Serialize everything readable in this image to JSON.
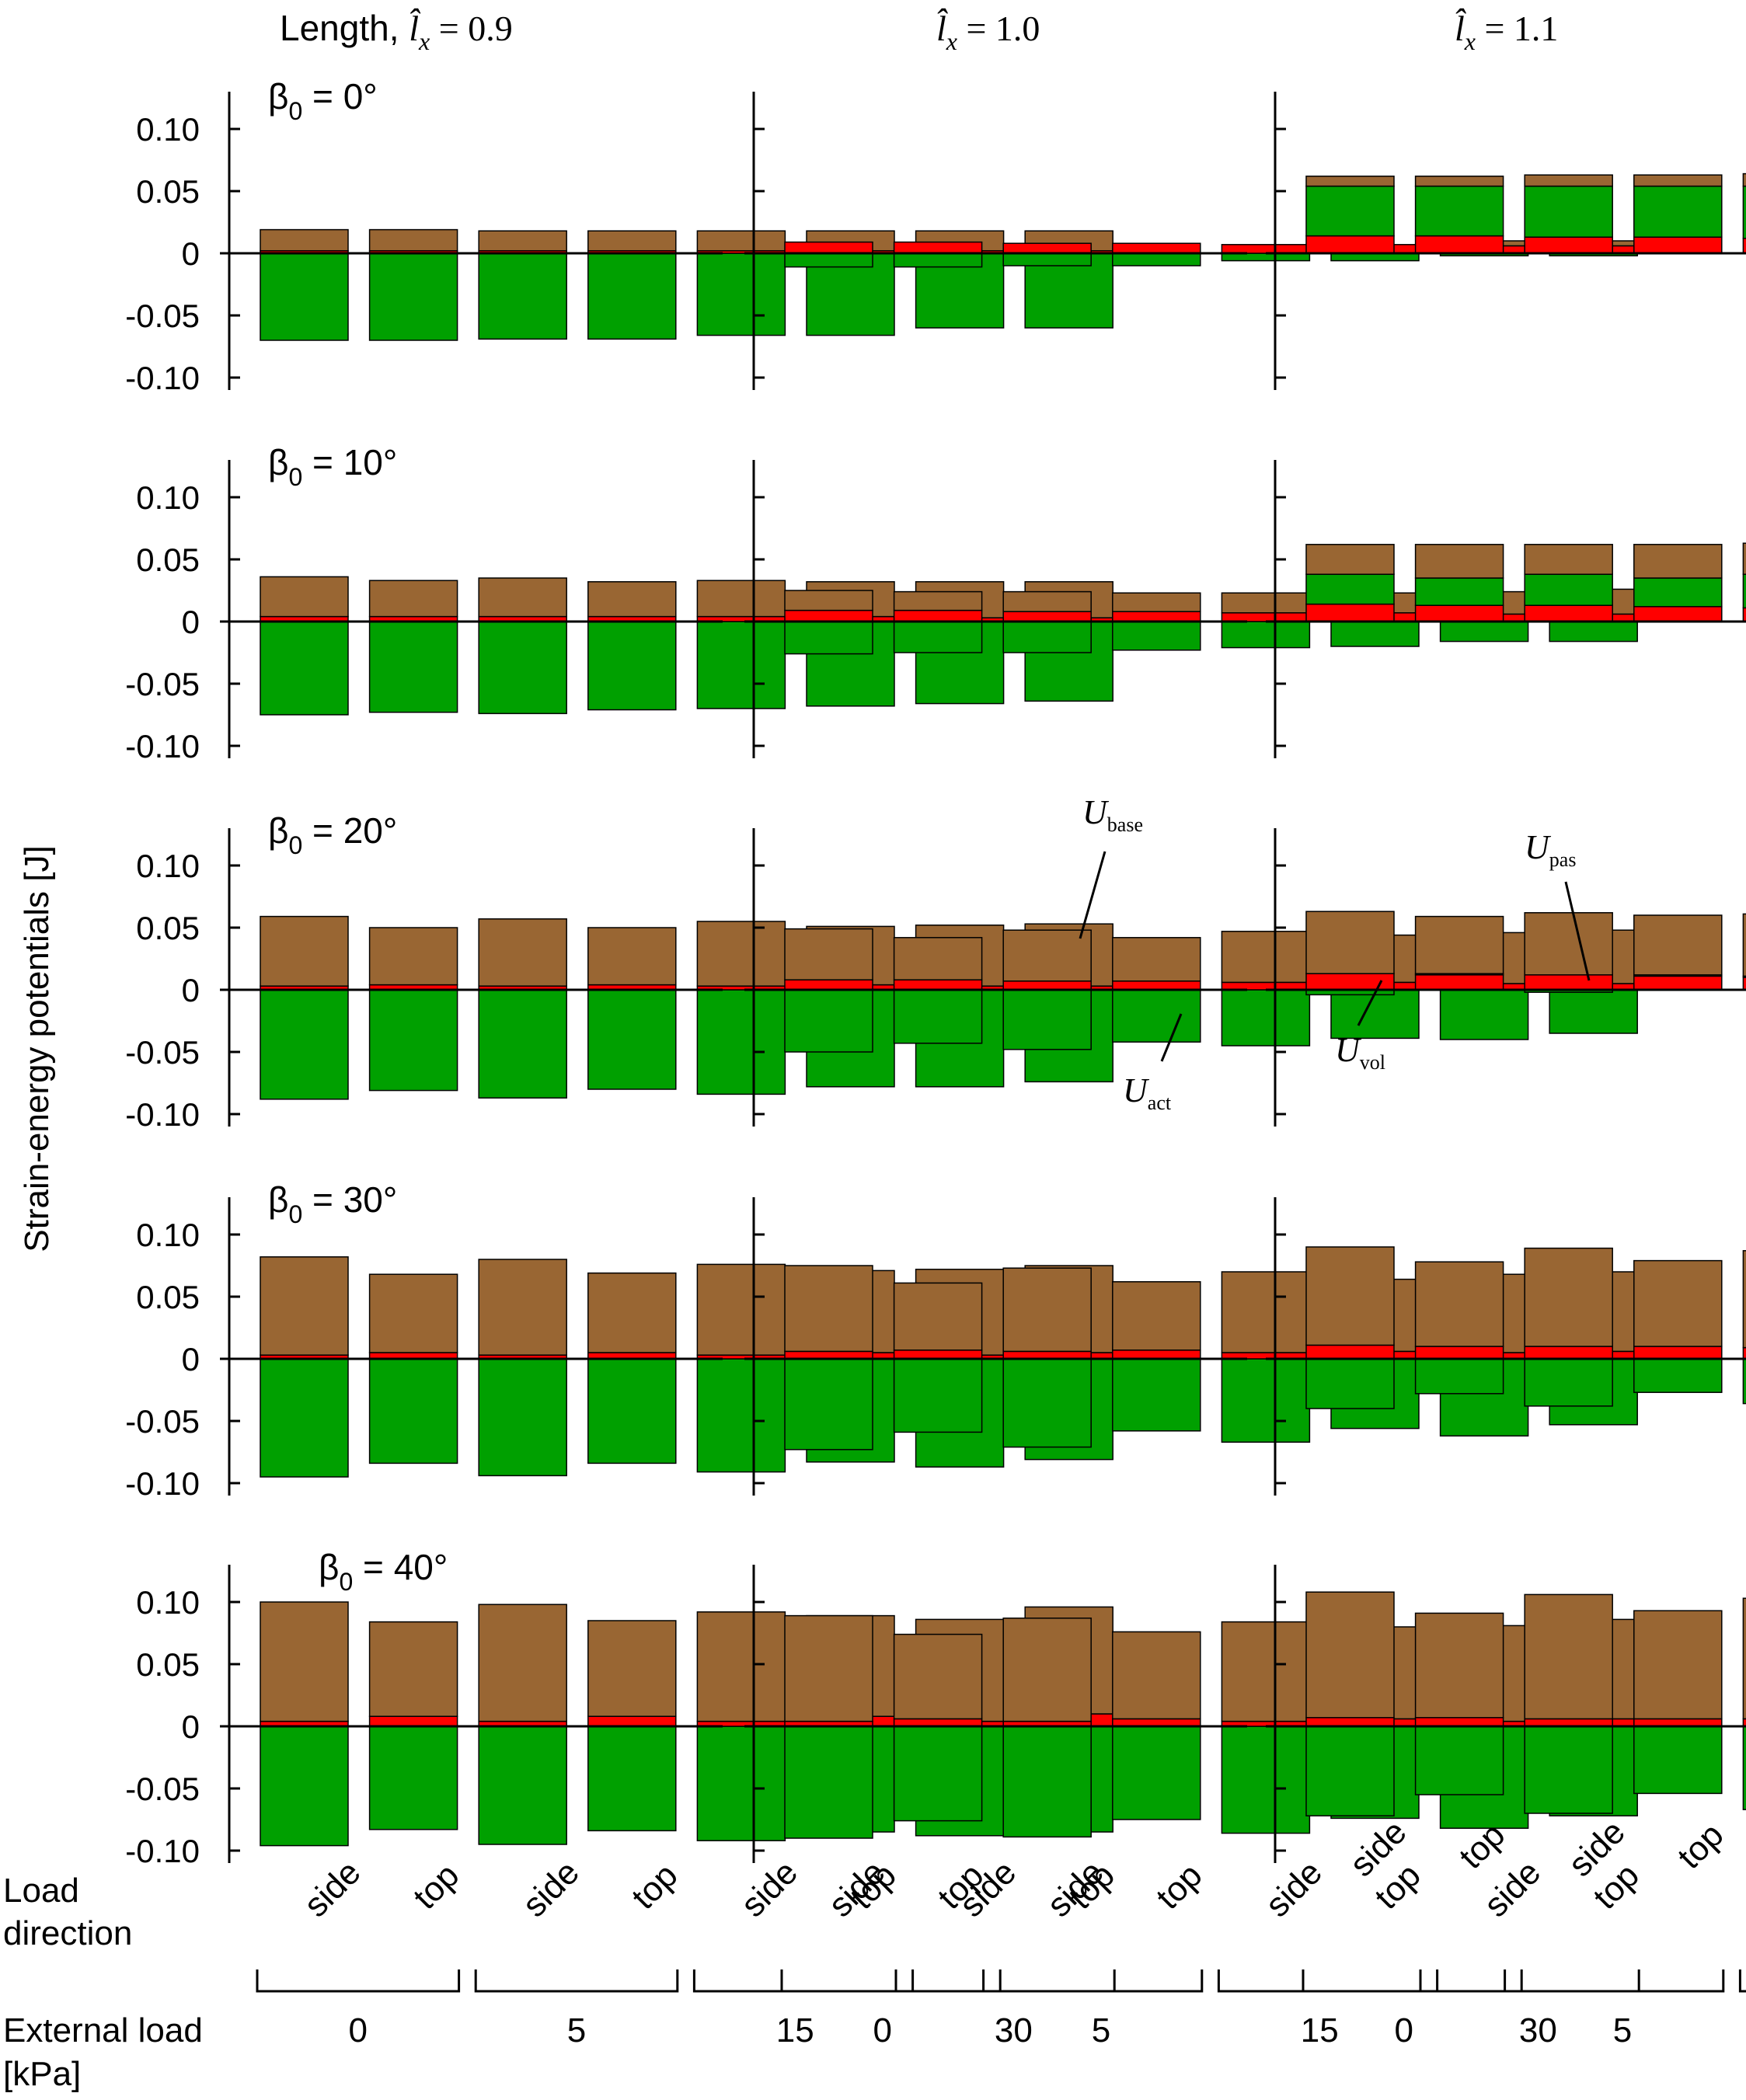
{
  "figure": {
    "ylabel": "Strain-energy potentials [J]",
    "load_direction_label": [
      "Load",
      "direction"
    ],
    "external_load_label": [
      "External load",
      "[kPa]"
    ],
    "load_groups": [
      "0",
      "5",
      "15",
      "30"
    ],
    "directions": [
      "side",
      "top"
    ],
    "yticks": [
      "0.10",
      "0.05",
      "0",
      "-0.05",
      "-0.10"
    ],
    "columns": [
      {
        "prefix": "Length, ",
        "value": "= 0.9"
      },
      {
        "prefix": "",
        "value": "= 1.0"
      },
      {
        "prefix": "",
        "value": "= 1.1"
      }
    ],
    "rows": [
      {
        "label": "= 0°"
      },
      {
        "label": "= 10°"
      },
      {
        "label": "= 20°"
      },
      {
        "label": "= 30°"
      },
      {
        "label": "= 40°"
      }
    ],
    "annotations": {
      "U_base": "base",
      "U_act": "act",
      "U_pas": "pas",
      "U_vol": "vol"
    },
    "colors": {
      "U_base": "#996633",
      "U_vol": "#ff0000",
      "U_act": "#00a000",
      "U_pas": "#00a000"
    }
  },
  "chart_data": [
    {
      "type": "bar",
      "panel": "beta0=0, lx=0.9",
      "categories": [
        "0 side",
        "0 top",
        "5 side",
        "5 top",
        "15 side",
        "15 top",
        "30 side",
        "30 top"
      ],
      "ylim": [
        -0.11,
        0.13
      ],
      "series": [
        {
          "name": "U_base",
          "values": [
            0.017,
            0.017,
            0.016,
            0.016,
            0.016,
            0.016,
            0.016,
            0.016
          ]
        },
        {
          "name": "U_vol",
          "values": [
            0.002,
            0.002,
            0.002,
            0.002,
            0.002,
            0.002,
            0.002,
            0.002
          ]
        },
        {
          "name": "U_pas",
          "values": [
            0,
            0,
            0,
            0,
            0,
            0,
            0,
            0
          ]
        },
        {
          "name": "U_act",
          "values": [
            -0.07,
            -0.07,
            -0.069,
            -0.069,
            -0.066,
            -0.066,
            -0.06,
            -0.06
          ]
        }
      ]
    },
    {
      "type": "bar",
      "panel": "beta0=0, lx=1.0",
      "categories": [
        "0 side",
        "0 top",
        "5 side",
        "5 top",
        "15 side",
        "15 top",
        "30 side",
        "30 top"
      ],
      "ylim": [
        -0.11,
        0.13
      ],
      "series": [
        {
          "name": "U_base",
          "values": [
            0,
            0,
            0,
            0,
            0,
            0,
            0.004,
            0.004
          ]
        },
        {
          "name": "U_vol",
          "values": [
            0.009,
            0.009,
            0.008,
            0.008,
            0.007,
            0.007,
            0.006,
            0.006
          ]
        },
        {
          "name": "U_pas",
          "values": [
            0,
            0,
            0,
            0,
            0,
            0,
            0,
            0
          ]
        },
        {
          "name": "U_act",
          "values": [
            -0.011,
            -0.011,
            -0.01,
            -0.01,
            -0.006,
            -0.006,
            -0.002,
            -0.002
          ]
        }
      ]
    },
    {
      "type": "bar",
      "panel": "beta0=0, lx=1.1",
      "categories": [
        "0 side",
        "0 top",
        "5 side",
        "5 top",
        "15 side",
        "15 top",
        "30 side",
        "30 top"
      ],
      "ylim": [
        -0.11,
        0.13
      ],
      "series": [
        {
          "name": "U_base",
          "values": [
            0.008,
            0.008,
            0.009,
            0.009,
            0.01,
            0.01,
            0.015,
            0.015
          ]
        },
        {
          "name": "U_vol",
          "values": [
            0.014,
            0.014,
            0.013,
            0.013,
            0.012,
            0.012,
            0.009,
            0.009
          ]
        },
        {
          "name": "U_pas",
          "values": [
            0.04,
            0.04,
            0.041,
            0.041,
            0.042,
            0.042,
            0.044,
            0.044
          ]
        },
        {
          "name": "U_act",
          "values": [
            0,
            0,
            0,
            0,
            0,
            0,
            0,
            0
          ]
        }
      ]
    },
    {
      "type": "bar",
      "panel": "beta0=10, lx=0.9",
      "categories": [
        "0 side",
        "0 top",
        "5 side",
        "5 top",
        "15 side",
        "15 top",
        "30 side",
        "30 top"
      ],
      "ylim": [
        -0.11,
        0.13
      ],
      "series": [
        {
          "name": "U_base",
          "values": [
            0.032,
            0.029,
            0.031,
            0.028,
            0.029,
            0.028,
            0.029,
            0.029
          ]
        },
        {
          "name": "U_vol",
          "values": [
            0.004,
            0.004,
            0.004,
            0.004,
            0.004,
            0.004,
            0.003,
            0.003
          ]
        },
        {
          "name": "U_pas",
          "values": [
            0,
            0,
            0,
            0,
            0,
            0,
            0,
            0
          ]
        },
        {
          "name": "U_act",
          "values": [
            -0.075,
            -0.073,
            -0.074,
            -0.071,
            -0.07,
            -0.068,
            -0.066,
            -0.064
          ]
        }
      ]
    },
    {
      "type": "bar",
      "panel": "beta0=10, lx=1.0",
      "categories": [
        "0 side",
        "0 top",
        "5 side",
        "5 top",
        "15 side",
        "15 top",
        "30 side",
        "30 top"
      ],
      "ylim": [
        -0.11,
        0.13
      ],
      "series": [
        {
          "name": "U_base",
          "values": [
            0.016,
            0.015,
            0.016,
            0.015,
            0.016,
            0.016,
            0.018,
            0.02
          ]
        },
        {
          "name": "U_vol",
          "values": [
            0.009,
            0.009,
            0.008,
            0.008,
            0.007,
            0.007,
            0.006,
            0.006
          ]
        },
        {
          "name": "U_pas",
          "values": [
            0,
            0,
            0,
            0,
            0,
            0,
            0,
            0
          ]
        },
        {
          "name": "U_act",
          "values": [
            -0.026,
            -0.025,
            -0.025,
            -0.023,
            -0.021,
            -0.02,
            -0.016,
            -0.016
          ]
        }
      ]
    },
    {
      "type": "bar",
      "panel": "beta0=10, lx=1.1",
      "categories": [
        "0 side",
        "0 top",
        "5 side",
        "5 top",
        "15 side",
        "15 top",
        "30 side",
        "30 top"
      ],
      "ylim": [
        -0.11,
        0.13
      ],
      "series": [
        {
          "name": "U_base",
          "values": [
            0.024,
            0.027,
            0.024,
            0.027,
            0.025,
            0.028,
            0.028,
            0.033
          ]
        },
        {
          "name": "U_vol",
          "values": [
            0.014,
            0.013,
            0.013,
            0.012,
            0.011,
            0.01,
            0.009,
            0.008
          ]
        },
        {
          "name": "U_pas",
          "values": [
            0.024,
            0.022,
            0.025,
            0.023,
            0.027,
            0.025,
            0.031,
            0.028
          ]
        },
        {
          "name": "U_act",
          "values": [
            0,
            0,
            0,
            0,
            0,
            0,
            0,
            0
          ]
        }
      ]
    },
    {
      "type": "bar",
      "panel": "beta0=20, lx=0.9",
      "categories": [
        "0 side",
        "0 top",
        "5 side",
        "5 top",
        "15 side",
        "15 top",
        "30 side",
        "30 top"
      ],
      "ylim": [
        -0.11,
        0.13
      ],
      "series": [
        {
          "name": "U_base",
          "values": [
            0.056,
            0.046,
            0.054,
            0.046,
            0.052,
            0.047,
            0.049,
            0.05
          ]
        },
        {
          "name": "U_vol",
          "values": [
            0.003,
            0.004,
            0.003,
            0.004,
            0.003,
            0.004,
            0.003,
            0.003
          ]
        },
        {
          "name": "U_pas",
          "values": [
            0,
            0,
            0,
            0,
            0,
            0,
            0,
            0
          ]
        },
        {
          "name": "U_act",
          "values": [
            -0.088,
            -0.081,
            -0.087,
            -0.08,
            -0.084,
            -0.078,
            -0.078,
            -0.074
          ]
        }
      ]
    },
    {
      "type": "bar",
      "panel": "beta0=20, lx=1.0",
      "categories": [
        "0 side",
        "0 top",
        "5 side",
        "5 top",
        "15 side",
        "15 top",
        "30 side",
        "30 top"
      ],
      "ylim": [
        -0.11,
        0.13
      ],
      "series": [
        {
          "name": "U_base",
          "values": [
            0.041,
            0.034,
            0.041,
            0.035,
            0.041,
            0.038,
            0.041,
            0.043
          ]
        },
        {
          "name": "U_vol",
          "values": [
            0.008,
            0.008,
            0.007,
            0.007,
            0.006,
            0.006,
            0.005,
            0.005
          ]
        },
        {
          "name": "U_pas",
          "values": [
            0,
            0,
            0,
            0,
            0,
            0,
            0,
            0
          ]
        },
        {
          "name": "U_act",
          "values": [
            -0.05,
            -0.043,
            -0.048,
            -0.042,
            -0.045,
            -0.039,
            -0.04,
            -0.035
          ]
        }
      ]
    },
    {
      "type": "bar",
      "panel": "beta0=20, lx=1.1",
      "categories": [
        "0 side",
        "0 top",
        "5 side",
        "5 top",
        "15 side",
        "15 top",
        "30 side",
        "30 top"
      ],
      "ylim": [
        -0.11,
        0.13
      ],
      "series": [
        {
          "name": "U_base",
          "values": [
            0.05,
            0.046,
            0.05,
            0.048,
            0.05,
            0.05,
            0.051,
            0.055
          ]
        },
        {
          "name": "U_vol",
          "values": [
            0.013,
            0.012,
            0.012,
            0.011,
            0.01,
            0.009,
            0.009,
            0.008
          ]
        },
        {
          "name": "U_pas",
          "values": [
            0,
            0.001,
            0,
            0.001,
            0.001,
            0.002,
            0.002,
            0.004
          ]
        },
        {
          "name": "U_act",
          "values": [
            -0.004,
            0,
            -0.002,
            0,
            0,
            0,
            0,
            0
          ]
        }
      ]
    },
    {
      "type": "bar",
      "panel": "beta0=30, lx=0.9",
      "categories": [
        "0 side",
        "0 top",
        "5 side",
        "5 top",
        "15 side",
        "15 top",
        "30 side",
        "30 top"
      ],
      "ylim": [
        -0.11,
        0.13
      ],
      "series": [
        {
          "name": "U_base",
          "values": [
            0.079,
            0.063,
            0.077,
            0.064,
            0.073,
            0.066,
            0.069,
            0.07
          ]
        },
        {
          "name": "U_vol",
          "values": [
            0.003,
            0.005,
            0.003,
            0.005,
            0.003,
            0.005,
            0.003,
            0.005
          ]
        },
        {
          "name": "U_pas",
          "values": [
            0,
            0,
            0,
            0,
            0,
            0,
            0,
            0
          ]
        },
        {
          "name": "U_act",
          "values": [
            -0.095,
            -0.084,
            -0.094,
            -0.084,
            -0.091,
            -0.083,
            -0.087,
            -0.081
          ]
        }
      ]
    },
    {
      "type": "bar",
      "panel": "beta0=30, lx=1.0",
      "categories": [
        "0 side",
        "0 top",
        "5 side",
        "5 top",
        "15 side",
        "15 top",
        "30 side",
        "30 top"
      ],
      "ylim": [
        -0.11,
        0.13
      ],
      "series": [
        {
          "name": "U_base",
          "values": [
            0.069,
            0.054,
            0.067,
            0.055,
            0.065,
            0.058,
            0.063,
            0.064
          ]
        },
        {
          "name": "U_vol",
          "values": [
            0.006,
            0.007,
            0.006,
            0.007,
            0.005,
            0.006,
            0.005,
            0.006
          ]
        },
        {
          "name": "U_pas",
          "values": [
            0,
            0,
            0,
            0,
            0,
            0,
            0,
            0
          ]
        },
        {
          "name": "U_act",
          "values": [
            -0.073,
            -0.059,
            -0.071,
            -0.058,
            -0.067,
            -0.056,
            -0.062,
            -0.053
          ]
        }
      ]
    },
    {
      "type": "bar",
      "panel": "beta0=30, lx=1.1",
      "categories": [
        "0 side",
        "0 top",
        "5 side",
        "5 top",
        "15 side",
        "15 top",
        "30 side",
        "30 top"
      ],
      "ylim": [
        -0.11,
        0.13
      ],
      "series": [
        {
          "name": "U_base",
          "values": [
            0.079,
            0.068,
            0.079,
            0.069,
            0.078,
            0.072,
            0.078,
            0.079
          ]
        },
        {
          "name": "U_vol",
          "values": [
            0.011,
            0.01,
            0.01,
            0.01,
            0.009,
            0.009,
            0.008,
            0.008
          ]
        },
        {
          "name": "U_pas",
          "values": [
            0,
            0,
            0,
            0,
            0,
            0,
            0,
            0
          ]
        },
        {
          "name": "U_act",
          "values": [
            -0.04,
            -0.028,
            -0.038,
            -0.027,
            -0.036,
            -0.025,
            -0.031,
            -0.023
          ]
        }
      ]
    },
    {
      "type": "bar",
      "panel": "beta0=40, lx=0.9",
      "categories": [
        "0 side",
        "0 top",
        "5 side",
        "5 top",
        "15 side",
        "15 top",
        "30 side",
        "30 top"
      ],
      "ylim": [
        -0.11,
        0.13
      ],
      "series": [
        {
          "name": "U_base",
          "values": [
            0.096,
            0.076,
            0.094,
            0.077,
            0.088,
            0.081,
            0.082,
            0.086
          ]
        },
        {
          "name": "U_vol",
          "values": [
            0.004,
            0.008,
            0.004,
            0.008,
            0.004,
            0.008,
            0.004,
            0.01
          ]
        },
        {
          "name": "U_pas",
          "values": [
            0,
            0,
            0,
            0,
            0,
            0,
            0,
            0
          ]
        },
        {
          "name": "U_act",
          "values": [
            -0.096,
            -0.083,
            -0.095,
            -0.084,
            -0.092,
            -0.085,
            -0.088,
            -0.085
          ]
        }
      ]
    },
    {
      "type": "bar",
      "panel": "beta0=40, lx=1.0",
      "categories": [
        "0 side",
        "0 top",
        "5 side",
        "5 top",
        "15 side",
        "15 top",
        "30 side",
        "30 top"
      ],
      "ylim": [
        -0.11,
        0.13
      ],
      "series": [
        {
          "name": "U_base",
          "values": [
            0.085,
            0.068,
            0.083,
            0.07,
            0.08,
            0.074,
            0.077,
            0.08
          ]
        },
        {
          "name": "U_vol",
          "values": [
            0.004,
            0.006,
            0.004,
            0.006,
            0.004,
            0.006,
            0.004,
            0.006
          ]
        },
        {
          "name": "U_pas",
          "values": [
            0,
            0,
            0,
            0,
            0,
            0,
            0,
            0
          ]
        },
        {
          "name": "U_act",
          "values": [
            -0.09,
            -0.076,
            -0.089,
            -0.075,
            -0.086,
            -0.074,
            -0.082,
            -0.072
          ]
        }
      ]
    },
    {
      "type": "bar",
      "panel": "beta0=40, lx=1.1",
      "categories": [
        "0 side",
        "0 top",
        "5 side",
        "5 top",
        "15 side",
        "15 top",
        "30 side",
        "30 top"
      ],
      "ylim": [
        -0.11,
        0.13
      ],
      "series": [
        {
          "name": "U_base",
          "values": [
            0.101,
            0.084,
            0.1,
            0.087,
            0.097,
            0.091,
            0.096,
            0.1
          ]
        },
        {
          "name": "U_vol",
          "values": [
            0.007,
            0.007,
            0.006,
            0.006,
            0.006,
            0.006,
            0.005,
            0.005
          ]
        },
        {
          "name": "U_pas",
          "values": [
            0,
            0,
            0,
            0,
            0,
            0,
            0,
            0
          ]
        },
        {
          "name": "U_act",
          "values": [
            -0.072,
            -0.055,
            -0.07,
            -0.054,
            -0.067,
            -0.053,
            -0.062,
            -0.052
          ]
        }
      ]
    }
  ]
}
